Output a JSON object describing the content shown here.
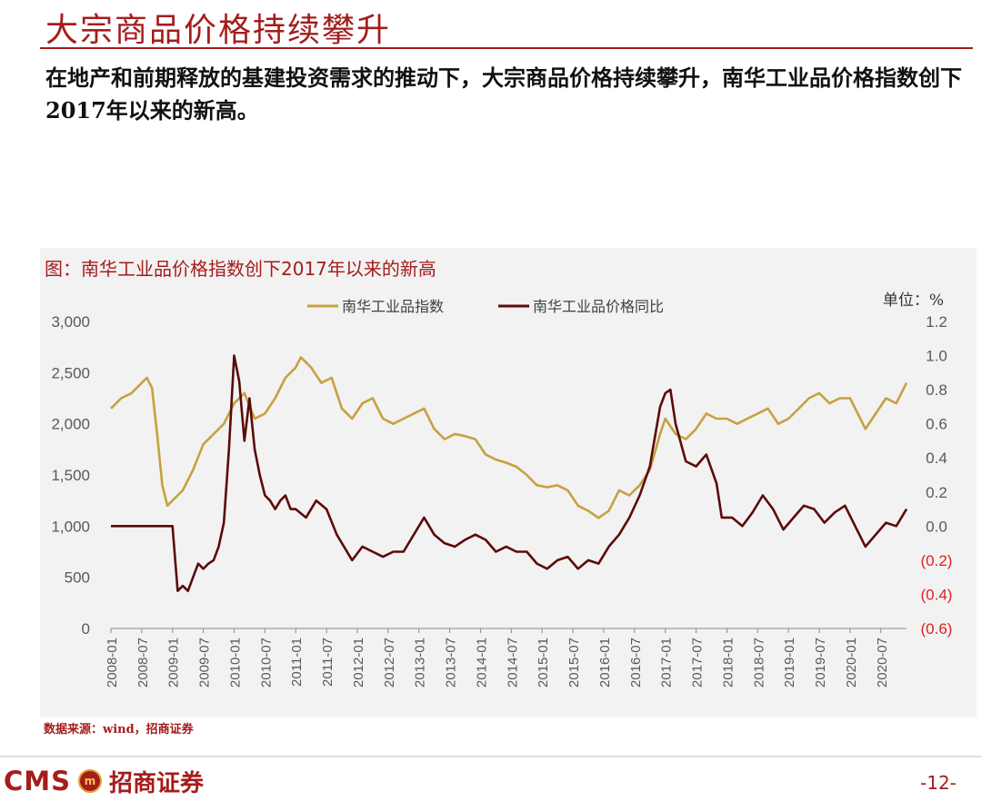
{
  "slide": {
    "title": "大宗商品价格持续攀升",
    "subtitle": "在地产和前期释放的基建投资需求的推动下，大宗商品价格持续攀升，南华工业品价格指数创下2017年以来的新高。",
    "source": "数据来源：wind，招商证券",
    "page_number": "-12-"
  },
  "logo": {
    "cms": "CMS",
    "badge": "m",
    "name": "招商证券"
  },
  "colors": {
    "accent": "#a51c1c",
    "index_line": "#c8a040",
    "yoy_line": "#5c0a0a",
    "negative_tick": "#e02020",
    "panel": "#f2f2f2"
  },
  "chart_data": {
    "type": "line",
    "title": "图：南华工业品价格指数创下2017年以来的新高",
    "unit_label": "单位：%",
    "x_range": [
      "2008-01",
      "2020-12"
    ],
    "x_tick_labels": [
      "2008-01",
      "2008-07",
      "2009-01",
      "2009-07",
      "2010-01",
      "2010-07",
      "2011-01",
      "2011-07",
      "2012-01",
      "2012-07",
      "2013-01",
      "2013-07",
      "2014-01",
      "2014-07",
      "2015-01",
      "2015-07",
      "2016-01",
      "2016-07",
      "2017-01",
      "2017-07",
      "2018-01",
      "2018-07",
      "2019-01",
      "2019-07",
      "2020-01",
      "2020-07"
    ],
    "y_left": {
      "range": [
        0,
        3000
      ],
      "ticks": [
        0,
        500,
        1000,
        1500,
        2000,
        2500,
        3000
      ],
      "tick_labels": [
        "0",
        "500",
        "1,000",
        "1,500",
        "2,000",
        "2,500",
        "3,000"
      ]
    },
    "y_right": {
      "range": [
        -0.6,
        1.2
      ],
      "ticks": [
        -0.6,
        -0.4,
        -0.2,
        0,
        0.2,
        0.4,
        0.6,
        0.8,
        1.0,
        1.2
      ],
      "tick_labels": [
        "(0.6)",
        "(0.4)",
        "(0.2)",
        "0.0",
        "0.2",
        "0.4",
        "0.6",
        "0.8",
        "1.0",
        "1.2"
      ]
    },
    "legend_position": "top-center",
    "series": [
      {
        "name": "南华工业品指数",
        "axis": "left",
        "points": [
          [
            "2008-01",
            2150
          ],
          [
            "2008-03",
            2250
          ],
          [
            "2008-05",
            2300
          ],
          [
            "2008-07",
            2400
          ],
          [
            "2008-08",
            2450
          ],
          [
            "2008-09",
            2350
          ],
          [
            "2008-10",
            1900
          ],
          [
            "2008-11",
            1400
          ],
          [
            "2008-12",
            1200
          ],
          [
            "2009-01",
            1250
          ],
          [
            "2009-03",
            1350
          ],
          [
            "2009-05",
            1550
          ],
          [
            "2009-07",
            1800
          ],
          [
            "2009-09",
            1900
          ],
          [
            "2009-11",
            2000
          ],
          [
            "2010-01",
            2200
          ],
          [
            "2010-03",
            2300
          ],
          [
            "2010-05",
            2050
          ],
          [
            "2010-07",
            2100
          ],
          [
            "2010-09",
            2250
          ],
          [
            "2010-11",
            2450
          ],
          [
            "2011-01",
            2550
          ],
          [
            "2011-02",
            2650
          ],
          [
            "2011-04",
            2550
          ],
          [
            "2011-06",
            2400
          ],
          [
            "2011-08",
            2450
          ],
          [
            "2011-10",
            2150
          ],
          [
            "2011-12",
            2050
          ],
          [
            "2012-02",
            2200
          ],
          [
            "2012-04",
            2250
          ],
          [
            "2012-06",
            2050
          ],
          [
            "2012-08",
            2000
          ],
          [
            "2012-10",
            2050
          ],
          [
            "2012-12",
            2100
          ],
          [
            "2013-02",
            2150
          ],
          [
            "2013-04",
            1950
          ],
          [
            "2013-06",
            1850
          ],
          [
            "2013-08",
            1900
          ],
          [
            "2013-10",
            1880
          ],
          [
            "2013-12",
            1850
          ],
          [
            "2014-02",
            1700
          ],
          [
            "2014-04",
            1650
          ],
          [
            "2014-06",
            1620
          ],
          [
            "2014-08",
            1580
          ],
          [
            "2014-10",
            1500
          ],
          [
            "2014-12",
            1400
          ],
          [
            "2015-02",
            1380
          ],
          [
            "2015-04",
            1400
          ],
          [
            "2015-06",
            1350
          ],
          [
            "2015-08",
            1200
          ],
          [
            "2015-10",
            1150
          ],
          [
            "2015-12",
            1080
          ],
          [
            "2016-02",
            1150
          ],
          [
            "2016-04",
            1350
          ],
          [
            "2016-06",
            1300
          ],
          [
            "2016-08",
            1400
          ],
          [
            "2016-10",
            1550
          ],
          [
            "2016-12",
            1900
          ],
          [
            "2017-01",
            2050
          ],
          [
            "2017-03",
            1900
          ],
          [
            "2017-05",
            1850
          ],
          [
            "2017-07",
            1950
          ],
          [
            "2017-09",
            2100
          ],
          [
            "2017-11",
            2050
          ],
          [
            "2018-01",
            2050
          ],
          [
            "2018-03",
            2000
          ],
          [
            "2018-05",
            2050
          ],
          [
            "2018-07",
            2100
          ],
          [
            "2018-09",
            2150
          ],
          [
            "2018-11",
            2000
          ],
          [
            "2019-01",
            2050
          ],
          [
            "2019-03",
            2150
          ],
          [
            "2019-05",
            2250
          ],
          [
            "2019-07",
            2300
          ],
          [
            "2019-09",
            2200
          ],
          [
            "2019-11",
            2250
          ],
          [
            "2020-01",
            2250
          ],
          [
            "2020-03",
            2050
          ],
          [
            "2020-04",
            1950
          ],
          [
            "2020-06",
            2100
          ],
          [
            "2020-08",
            2250
          ],
          [
            "2020-10",
            2200
          ],
          [
            "2020-12",
            2400
          ]
        ]
      },
      {
        "name": "南华工业品价格同比",
        "axis": "right",
        "points": [
          [
            "2008-01",
            0.0
          ],
          [
            "2009-01",
            0.0
          ],
          [
            "2009-02",
            -0.38
          ],
          [
            "2009-03",
            -0.35
          ],
          [
            "2009-04",
            -0.38
          ],
          [
            "2009-05",
            -0.3
          ],
          [
            "2009-06",
            -0.22
          ],
          [
            "2009-07",
            -0.25
          ],
          [
            "2009-08",
            -0.22
          ],
          [
            "2009-09",
            -0.2
          ],
          [
            "2009-10",
            -0.12
          ],
          [
            "2009-11",
            0.02
          ],
          [
            "2009-12",
            0.45
          ],
          [
            "2010-01",
            1.0
          ],
          [
            "2010-02",
            0.85
          ],
          [
            "2010-03",
            0.5
          ],
          [
            "2010-04",
            0.75
          ],
          [
            "2010-05",
            0.45
          ],
          [
            "2010-06",
            0.3
          ],
          [
            "2010-07",
            0.18
          ],
          [
            "2010-08",
            0.15
          ],
          [
            "2010-09",
            0.1
          ],
          [
            "2010-10",
            0.15
          ],
          [
            "2010-11",
            0.18
          ],
          [
            "2010-12",
            0.1
          ],
          [
            "2011-01",
            0.1
          ],
          [
            "2011-03",
            0.05
          ],
          [
            "2011-05",
            0.15
          ],
          [
            "2011-07",
            0.1
          ],
          [
            "2011-09",
            -0.05
          ],
          [
            "2011-10",
            -0.1
          ],
          [
            "2011-12",
            -0.2
          ],
          [
            "2012-02",
            -0.12
          ],
          [
            "2012-04",
            -0.15
          ],
          [
            "2012-06",
            -0.18
          ],
          [
            "2012-08",
            -0.15
          ],
          [
            "2012-10",
            -0.15
          ],
          [
            "2012-12",
            -0.05
          ],
          [
            "2013-02",
            0.05
          ],
          [
            "2013-04",
            -0.05
          ],
          [
            "2013-06",
            -0.1
          ],
          [
            "2013-08",
            -0.12
          ],
          [
            "2013-10",
            -0.08
          ],
          [
            "2013-12",
            -0.05
          ],
          [
            "2014-02",
            -0.08
          ],
          [
            "2014-04",
            -0.15
          ],
          [
            "2014-06",
            -0.12
          ],
          [
            "2014-08",
            -0.15
          ],
          [
            "2014-10",
            -0.15
          ],
          [
            "2014-12",
            -0.22
          ],
          [
            "2015-02",
            -0.25
          ],
          [
            "2015-04",
            -0.2
          ],
          [
            "2015-06",
            -0.18
          ],
          [
            "2015-08",
            -0.25
          ],
          [
            "2015-10",
            -0.2
          ],
          [
            "2015-12",
            -0.22
          ],
          [
            "2016-02",
            -0.12
          ],
          [
            "2016-04",
            -0.05
          ],
          [
            "2016-06",
            0.05
          ],
          [
            "2016-08",
            0.18
          ],
          [
            "2016-10",
            0.35
          ],
          [
            "2016-12",
            0.7
          ],
          [
            "2017-01",
            0.78
          ],
          [
            "2017-02",
            0.8
          ],
          [
            "2017-03",
            0.6
          ],
          [
            "2017-05",
            0.38
          ],
          [
            "2017-07",
            0.35
          ],
          [
            "2017-09",
            0.42
          ],
          [
            "2017-11",
            0.25
          ],
          [
            "2017-12",
            0.05
          ],
          [
            "2018-02",
            0.05
          ],
          [
            "2018-04",
            0.0
          ],
          [
            "2018-06",
            0.08
          ],
          [
            "2018-08",
            0.18
          ],
          [
            "2018-10",
            0.1
          ],
          [
            "2018-12",
            -0.02
          ],
          [
            "2019-02",
            0.05
          ],
          [
            "2019-04",
            0.12
          ],
          [
            "2019-06",
            0.1
          ],
          [
            "2019-08",
            0.02
          ],
          [
            "2019-10",
            0.08
          ],
          [
            "2019-12",
            0.12
          ],
          [
            "2020-02",
            0.0
          ],
          [
            "2020-04",
            -0.12
          ],
          [
            "2020-06",
            -0.05
          ],
          [
            "2020-08",
            0.02
          ],
          [
            "2020-10",
            0.0
          ],
          [
            "2020-12",
            0.1
          ]
        ]
      }
    ]
  }
}
